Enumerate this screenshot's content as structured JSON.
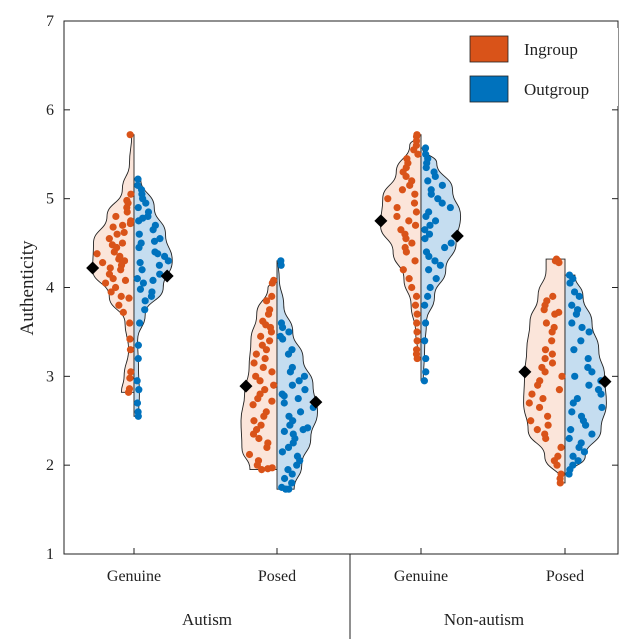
{
  "chart_data": {
    "type": "violin",
    "title": "",
    "ylabel": "Authenticity",
    "ylim": [
      1,
      7
    ],
    "yticks": [
      "1",
      "2",
      "3",
      "4",
      "5",
      "6",
      "7"
    ],
    "grid": false,
    "legend": {
      "placement": "top-right",
      "entries": [
        {
          "label": "Ingroup",
          "color": "#D95319"
        },
        {
          "label": "Outgroup",
          "color": "#0072BD"
        }
      ]
    },
    "groups": [
      {
        "label": "Autism",
        "conditions": [
          "Genuine",
          "Posed"
        ]
      },
      {
        "label": "Non-autism",
        "conditions": [
          "Genuine",
          "Posed"
        ]
      }
    ],
    "colors": {
      "ingroup_fill": "#FBE5DA",
      "outgroup_fill": "#C5DDF0",
      "ingroup_point": "#D95319",
      "outgroup_point": "#0072BD",
      "mean_marker": "#000000"
    },
    "violins": [
      {
        "group": "Autism",
        "condition": "Genuine",
        "ingroup": {
          "mean": 4.22,
          "min": 2.82,
          "max": 5.72,
          "density": [
            [
              2.82,
              0.28
            ],
            [
              3.0,
              0.22
            ],
            [
              3.3,
              0.12
            ],
            [
              3.6,
              0.2
            ],
            [
              3.9,
              0.55
            ],
            [
              4.2,
              0.92
            ],
            [
              4.5,
              0.9
            ],
            [
              4.8,
              0.6
            ],
            [
              5.1,
              0.26
            ],
            [
              5.4,
              0.1
            ],
            [
              5.72,
              0.05
            ]
          ],
          "points": [
            5.72,
            5.05,
            4.98,
            4.95,
            4.9,
            4.85,
            4.8,
            4.75,
            4.72,
            4.7,
            4.68,
            4.62,
            4.6,
            4.55,
            4.5,
            4.48,
            4.45,
            4.4,
            4.38,
            4.35,
            4.32,
            4.3,
            4.28,
            4.25,
            4.22,
            4.2,
            4.15,
            4.1,
            4.08,
            4.05,
            4.0,
            3.95,
            3.9,
            3.88,
            3.8,
            3.72,
            3.6,
            3.42,
            3.3,
            3.05,
            2.98,
            2.86,
            2.82
          ]
        },
        "outgroup": {
          "mean": 4.13,
          "min": 2.55,
          "max": 5.22,
          "density": [
            [
              2.55,
              0.1
            ],
            [
              2.8,
              0.12
            ],
            [
              3.1,
              0.1
            ],
            [
              3.4,
              0.08
            ],
            [
              3.7,
              0.25
            ],
            [
              4.0,
              0.65
            ],
            [
              4.3,
              0.85
            ],
            [
              4.6,
              0.7
            ],
            [
              4.9,
              0.45
            ],
            [
              5.22,
              0.15
            ]
          ],
          "points": [
            5.22,
            5.15,
            5.1,
            5.05,
            5.0,
            4.95,
            4.9,
            4.85,
            4.8,
            4.78,
            4.75,
            4.7,
            4.65,
            4.6,
            4.55,
            4.52,
            4.5,
            4.45,
            4.4,
            4.38,
            4.35,
            4.3,
            4.28,
            4.25,
            4.2,
            4.15,
            4.1,
            4.08,
            4.05,
            3.98,
            3.95,
            3.9,
            3.85,
            3.75,
            3.6,
            3.35,
            3.2,
            2.95,
            2.85,
            2.7,
            2.6,
            2.55
          ]
        }
      },
      {
        "group": "Autism",
        "condition": "Posed",
        "ingroup": {
          "mean": 2.89,
          "min": 1.95,
          "max": 4.08,
          "density": [
            [
              1.95,
              0.6
            ],
            [
              2.2,
              0.78
            ],
            [
              2.5,
              0.8
            ],
            [
              2.8,
              0.72
            ],
            [
              3.1,
              0.62
            ],
            [
              3.4,
              0.58
            ],
            [
              3.7,
              0.45
            ],
            [
              4.0,
              0.2
            ],
            [
              4.08,
              0.05
            ]
          ],
          "points": [
            4.08,
            4.05,
            3.9,
            3.85,
            3.75,
            3.7,
            3.62,
            3.58,
            3.55,
            3.5,
            3.45,
            3.4,
            3.35,
            3.3,
            3.25,
            3.2,
            3.15,
            3.1,
            3.05,
            3.0,
            2.95,
            2.9,
            2.85,
            2.8,
            2.75,
            2.72,
            2.68,
            2.6,
            2.55,
            2.5,
            2.45,
            2.4,
            2.35,
            2.3,
            2.25,
            2.2,
            2.12,
            2.05,
            2.0,
            1.97,
            1.96,
            1.95
          ]
        },
        "outgroup": {
          "mean": 2.71,
          "min": 1.73,
          "max": 4.3,
          "density": [
            [
              1.73,
              0.38
            ],
            [
              2.0,
              0.55
            ],
            [
              2.3,
              0.75
            ],
            [
              2.6,
              0.9
            ],
            [
              2.9,
              0.8
            ],
            [
              3.2,
              0.58
            ],
            [
              3.5,
              0.35
            ],
            [
              3.8,
              0.15
            ],
            [
              4.1,
              0.05
            ],
            [
              4.3,
              0.02
            ]
          ],
          "points": [
            4.3,
            4.25,
            3.6,
            3.55,
            3.5,
            3.45,
            3.42,
            3.3,
            3.25,
            3.1,
            3.05,
            3.0,
            2.95,
            2.9,
            2.85,
            2.8,
            2.78,
            2.75,
            2.7,
            2.65,
            2.6,
            2.55,
            2.5,
            2.45,
            2.42,
            2.4,
            2.38,
            2.35,
            2.3,
            2.25,
            2.2,
            2.15,
            2.1,
            2.05,
            2.0,
            1.95,
            1.9,
            1.85,
            1.8,
            1.75,
            1.73,
            1.73
          ]
        }
      },
      {
        "group": "Non-autism",
        "condition": "Genuine",
        "ingroup": {
          "mean": 4.75,
          "min": 3.2,
          "max": 5.72,
          "density": [
            [
              3.2,
              0.05
            ],
            [
              3.5,
              0.12
            ],
            [
              3.8,
              0.22
            ],
            [
              4.1,
              0.38
            ],
            [
              4.4,
              0.62
            ],
            [
              4.7,
              0.9
            ],
            [
              5.0,
              0.85
            ],
            [
              5.3,
              0.55
            ],
            [
              5.6,
              0.25
            ],
            [
              5.72,
              0.02
            ]
          ],
          "points": [
            5.72,
            5.7,
            5.65,
            5.6,
            5.55,
            5.5,
            5.45,
            5.4,
            5.35,
            5.3,
            5.25,
            5.2,
            5.15,
            5.1,
            5.05,
            5.0,
            4.95,
            4.9,
            4.85,
            4.8,
            4.75,
            4.7,
            4.65,
            4.6,
            4.55,
            4.5,
            4.45,
            4.4,
            4.3,
            4.2,
            4.1,
            4.0,
            3.9,
            3.8,
            3.7,
            3.6,
            3.5,
            3.4,
            3.3,
            3.25,
            3.2
          ]
        },
        "outgroup": {
          "mean": 4.58,
          "min": 2.95,
          "max": 5.57,
          "density": [
            [
              2.95,
              0.05
            ],
            [
              3.3,
              0.08
            ],
            [
              3.6,
              0.12
            ],
            [
              3.9,
              0.3
            ],
            [
              4.2,
              0.55
            ],
            [
              4.5,
              0.78
            ],
            [
              4.8,
              0.88
            ],
            [
              5.1,
              0.7
            ],
            [
              5.4,
              0.35
            ],
            [
              5.57,
              0.03
            ]
          ],
          "points": [
            5.57,
            5.5,
            5.45,
            5.4,
            5.35,
            5.3,
            5.25,
            5.2,
            5.15,
            5.1,
            5.05,
            5.0,
            4.95,
            4.9,
            4.85,
            4.8,
            4.75,
            4.7,
            4.65,
            4.6,
            4.55,
            4.5,
            4.45,
            4.4,
            4.35,
            4.3,
            4.25,
            4.2,
            4.1,
            4.0,
            3.9,
            3.8,
            3.6,
            3.4,
            3.2,
            3.05,
            2.95
          ]
        }
      },
      {
        "group": "Non-autism",
        "condition": "Posed",
        "ingroup": {
          "mean": 3.05,
          "min": 1.8,
          "max": 4.32,
          "density": [
            [
              1.8,
              0.05
            ],
            [
              2.1,
              0.45
            ],
            [
              2.4,
              0.82
            ],
            [
              2.7,
              0.92
            ],
            [
              3.0,
              0.9
            ],
            [
              3.3,
              0.85
            ],
            [
              3.6,
              0.78
            ],
            [
              3.9,
              0.6
            ],
            [
              4.2,
              0.42
            ],
            [
              4.32,
              0.42
            ]
          ],
          "points": [
            4.32,
            4.3,
            4.3,
            4.28,
            3.9,
            3.85,
            3.8,
            3.75,
            3.72,
            3.7,
            3.6,
            3.55,
            3.5,
            3.4,
            3.3,
            3.25,
            3.2,
            3.15,
            3.1,
            3.05,
            3.0,
            2.95,
            2.9,
            2.85,
            2.8,
            2.75,
            2.7,
            2.65,
            2.55,
            2.5,
            2.45,
            2.4,
            2.35,
            2.3,
            2.2,
            2.1,
            2.05,
            2.0,
            1.9,
            1.85,
            1.8
          ]
        },
        "outgroup": {
          "mean": 2.94,
          "min": 1.9,
          "max": 4.14,
          "density": [
            [
              1.9,
              0.1
            ],
            [
              2.1,
              0.45
            ],
            [
              2.4,
              0.8
            ],
            [
              2.7,
              0.92
            ],
            [
              3.0,
              0.88
            ],
            [
              3.3,
              0.75
            ],
            [
              3.6,
              0.6
            ],
            [
              3.9,
              0.4
            ],
            [
              4.14,
              0.22
            ]
          ],
          "points": [
            4.14,
            4.1,
            4.05,
            3.95,
            3.9,
            3.8,
            3.75,
            3.7,
            3.6,
            3.55,
            3.5,
            3.4,
            3.3,
            3.2,
            3.1,
            3.05,
            3.0,
            2.95,
            2.9,
            2.85,
            2.8,
            2.75,
            2.7,
            2.65,
            2.6,
            2.55,
            2.5,
            2.45,
            2.4,
            2.35,
            2.3,
            2.25,
            2.2,
            2.15,
            2.1,
            2.05,
            2.0,
            1.95,
            1.9
          ]
        }
      }
    ]
  }
}
